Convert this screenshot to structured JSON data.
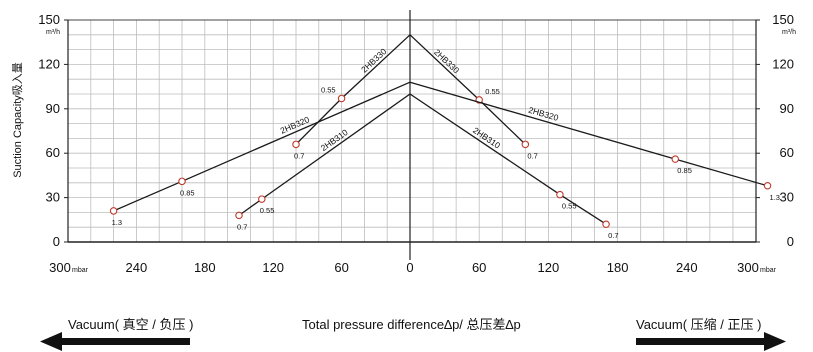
{
  "chart_data": {
    "type": "line",
    "x_unit": "mbar",
    "y_unit": "m³/h",
    "x_ticks_left": [
      "300",
      "240",
      "180",
      "120",
      "60",
      "0"
    ],
    "x_ticks_right": [
      "60",
      "120",
      "180",
      "240",
      "300"
    ],
    "y_ticks": [
      "0",
      "30",
      "60",
      "90",
      "120",
      "150"
    ],
    "xlim_vacuum": [
      0,
      300
    ],
    "xlim_pressure": [
      0,
      300
    ],
    "ylim": [
      0,
      150
    ],
    "grid": true,
    "series": [
      {
        "name": "2HB330",
        "vacuum": [
          {
            "x": 0,
            "y": 140
          },
          {
            "x": 60,
            "y": 97,
            "label": "0.55"
          },
          {
            "x": 100,
            "y": 66,
            "label": "0.7"
          }
        ],
        "pressure": [
          {
            "x": 0,
            "y": 140
          },
          {
            "x": 60,
            "y": 96,
            "label": "0.55"
          },
          {
            "x": 100,
            "y": 66,
            "label": "0.7"
          }
        ]
      },
      {
        "name": "2HB320",
        "vacuum": [
          {
            "x": 0,
            "y": 108
          },
          {
            "x": 200,
            "y": 41,
            "label": "0.85"
          },
          {
            "x": 260,
            "y": 21,
            "label": "1.3"
          }
        ],
        "pressure": [
          {
            "x": 0,
            "y": 108
          },
          {
            "x": 230,
            "y": 56,
            "label": "0.85"
          },
          {
            "x": 310,
            "y": 38,
            "label": "1.3"
          }
        ]
      },
      {
        "name": "2HB310",
        "vacuum": [
          {
            "x": 0,
            "y": 100
          },
          {
            "x": 130,
            "y": 29,
            "label": "0.55"
          },
          {
            "x": 150,
            "y": 18,
            "label": "0.7"
          }
        ],
        "pressure": [
          {
            "x": 0,
            "y": 100
          },
          {
            "x": 130,
            "y": 32,
            "label": "0.55"
          },
          {
            "x": 170,
            "y": 12,
            "label": "0.7"
          }
        ]
      }
    ],
    "ylabel_en": "Suction Capacity",
    "ylabel_cn": "吸入量",
    "xlabel": "Total pressure difference∆p/ 总压差∆p",
    "left_caption": "Vacuum( 真空 / 负压 )",
    "right_caption": "Vacuum( 压缩 / 正压 )"
  }
}
